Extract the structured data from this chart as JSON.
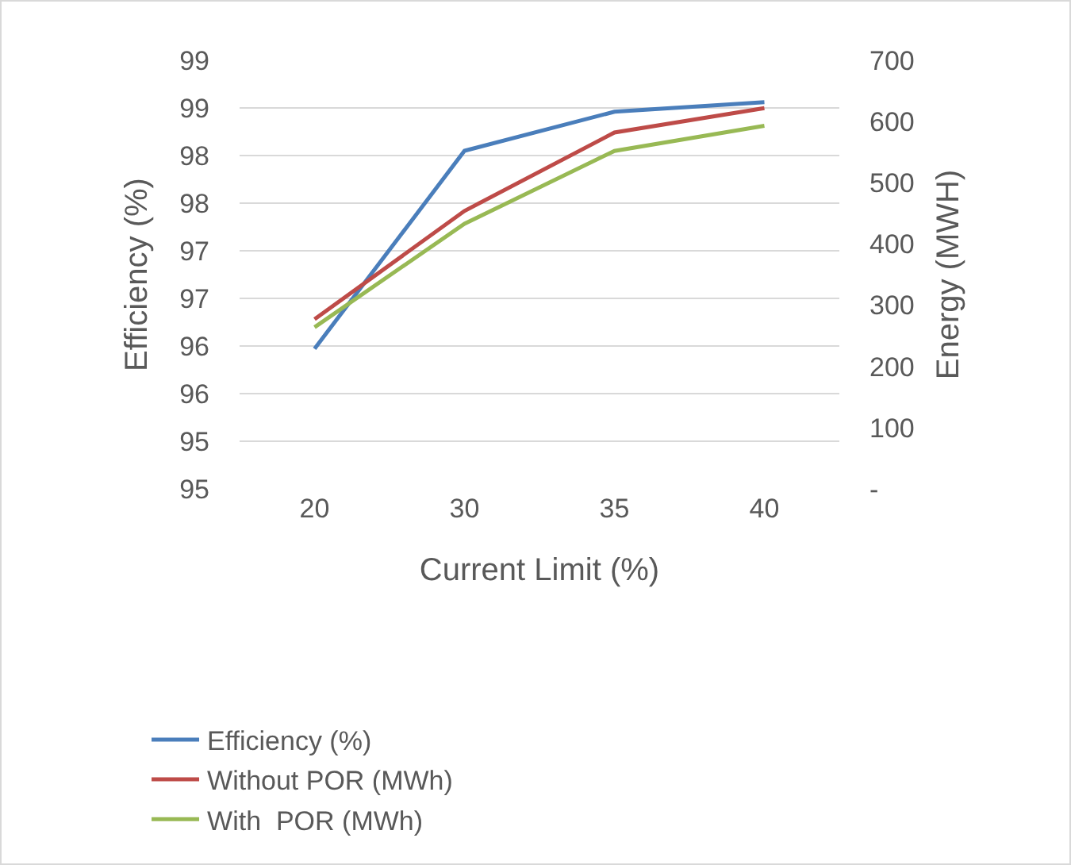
{
  "chart_data": {
    "type": "line",
    "xlabel": "Current Limit (%)",
    "ylabel": "Efficiency (%)",
    "y2label": "Energy (MWH)",
    "categories": [
      "20",
      "30",
      "35",
      "40"
    ],
    "series": [
      {
        "name": "Efficiency (%)",
        "color": "#4a7ebb",
        "values": [
          96.47,
          98.55,
          98.96,
          99.06
        ]
      },
      {
        "name": "Without POR (MWh)",
        "color": "#be4b48",
        "values": [
          277,
          454,
          582,
          622
        ],
        "axis": "y2"
      },
      {
        "name": "With  POR (MWh)",
        "color": "#98b954",
        "values": [
          264,
          433,
          552,
          593
        ],
        "axis": "y2"
      }
    ],
    "ylim": [
      95,
      99.5
    ],
    "yticks": [
      {
        "value": 95,
        "label": "95"
      },
      {
        "value": 95.5,
        "label": "95"
      },
      {
        "value": 96,
        "label": "96"
      },
      {
        "value": 96.5,
        "label": "96"
      },
      {
        "value": 97,
        "label": "97"
      },
      {
        "value": 97.5,
        "label": "97"
      },
      {
        "value": 98,
        "label": "98"
      },
      {
        "value": 98.5,
        "label": "98"
      },
      {
        "value": 99,
        "label": "99"
      },
      {
        "value": 99.5,
        "label": "99"
      }
    ],
    "y2lim": [
      0,
      700
    ],
    "y2ticks": [
      {
        "value": 0,
        "label": "-"
      },
      100,
      200,
      300,
      400,
      500,
      600,
      700
    ],
    "grid": "y",
    "legend": "bottom",
    "marker": "none",
    "line_style": "solid"
  }
}
